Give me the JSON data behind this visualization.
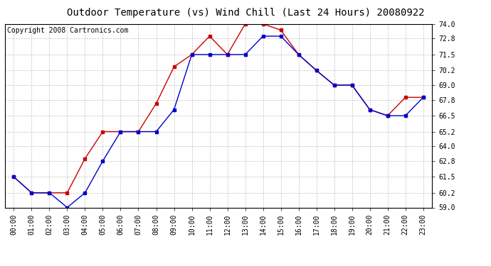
{
  "title": "Outdoor Temperature (vs) Wind Chill (Last 24 Hours) 20080922",
  "copyright": "Copyright 2008 Cartronics.com",
  "x_labels": [
    "00:00",
    "01:00",
    "02:00",
    "03:00",
    "04:00",
    "05:00",
    "06:00",
    "07:00",
    "08:00",
    "09:00",
    "10:00",
    "11:00",
    "12:00",
    "13:00",
    "14:00",
    "15:00",
    "16:00",
    "17:00",
    "18:00",
    "19:00",
    "20:00",
    "21:00",
    "22:00",
    "23:00"
  ],
  "temp_red": [
    61.5,
    60.2,
    60.2,
    60.2,
    63.0,
    65.2,
    65.2,
    65.2,
    67.5,
    70.5,
    71.5,
    73.0,
    71.5,
    74.0,
    74.0,
    73.5,
    71.5,
    70.2,
    69.0,
    69.0,
    67.0,
    66.5,
    68.0,
    68.0
  ],
  "temp_blue": [
    61.5,
    60.2,
    60.2,
    59.0,
    60.2,
    62.8,
    65.2,
    65.2,
    65.2,
    67.0,
    71.5,
    71.5,
    71.5,
    71.5,
    73.0,
    73.0,
    71.5,
    70.2,
    69.0,
    69.0,
    67.0,
    66.5,
    66.5,
    68.0
  ],
  "red_color": "#cc0000",
  "blue_color": "#0000cc",
  "background_color": "#ffffff",
  "grid_color": "#bbbbbb",
  "ylim": [
    59.0,
    74.0
  ],
  "yticks": [
    59.0,
    60.2,
    61.5,
    62.8,
    64.0,
    65.2,
    66.5,
    67.8,
    69.0,
    70.2,
    71.5,
    72.8,
    74.0
  ],
  "title_fontsize": 10,
  "copyright_fontsize": 7,
  "tick_fontsize": 7,
  "ytick_fontsize": 7
}
